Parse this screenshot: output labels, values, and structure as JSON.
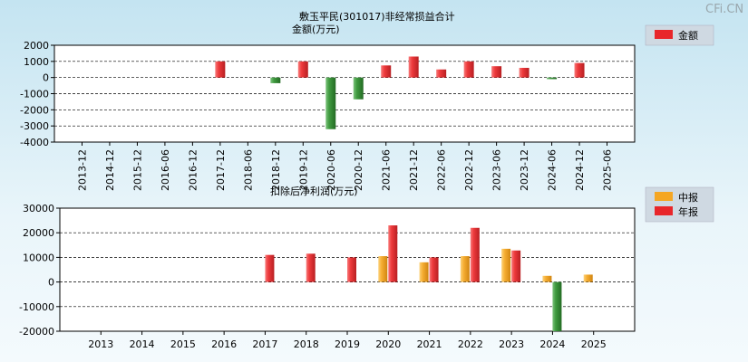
{
  "watermark": "CFi.CN",
  "chart_data": [
    {
      "type": "bar",
      "title": "敷玉平民(301017)非经常损益合计",
      "subtitle": "金额(万元)",
      "legend": [
        "金额"
      ],
      "legend_position": "top-right",
      "ylim": [
        -4000,
        2000
      ],
      "yticks": [
        2000,
        1000,
        0,
        -1000,
        -2000,
        -3000,
        -4000
      ],
      "categories": [
        "2013-12",
        "2014-12",
        "2015-12",
        "2016-06",
        "2016-12",
        "2017-12",
        "2018-06",
        "2018-12",
        "2019-12",
        "2020-06",
        "2020-12",
        "2021-06",
        "2021-12",
        "2022-06",
        "2022-12",
        "2023-06",
        "2023-12",
        "2024-06",
        "2024-12",
        "2025-06"
      ],
      "values": [
        null,
        null,
        null,
        null,
        null,
        1000,
        null,
        -350,
        1000,
        -3200,
        -1350,
        750,
        1300,
        500,
        1000,
        700,
        600,
        -100,
        900,
        null
      ],
      "colors": {
        "positive": "#e8262a",
        "negative": "#3a8c3a"
      }
    },
    {
      "type": "bar",
      "title": "扣除后净利润(万元)",
      "legend": [
        "中报",
        "年报"
      ],
      "legend_position": "top-right",
      "ylim": [
        -20000,
        30000
      ],
      "yticks": [
        30000,
        20000,
        10000,
        0,
        -10000,
        -20000
      ],
      "categories": [
        "2013",
        "2014",
        "2015",
        "2016",
        "2017",
        "2018",
        "2019",
        "2020",
        "2021",
        "2022",
        "2023",
        "2024",
        "2025"
      ],
      "series": [
        {
          "name": "中报",
          "color": "#f5a623",
          "values": [
            null,
            null,
            null,
            null,
            null,
            null,
            null,
            10500,
            8000,
            10500,
            13500,
            2500,
            3000
          ]
        },
        {
          "name": "年报",
          "color": "#e8262a",
          "values": [
            null,
            null,
            null,
            null,
            11000,
            11500,
            10000,
            23000,
            10000,
            22000,
            12800,
            -20000,
            null
          ]
        }
      ],
      "negative_color": "#3a8c3a"
    }
  ]
}
